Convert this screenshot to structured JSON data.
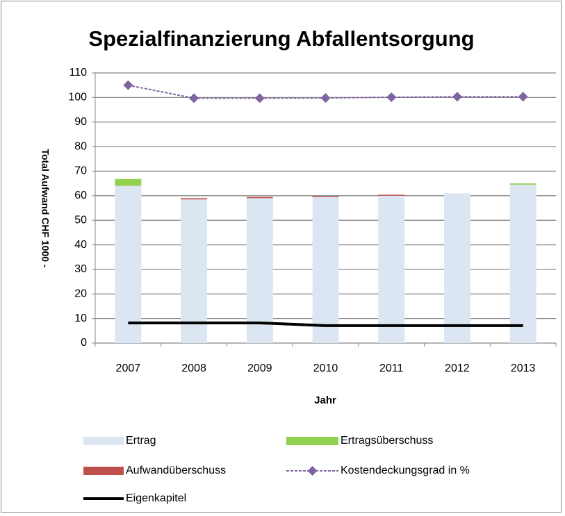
{
  "chart_data": {
    "type": "bar",
    "title": "Spezialfinanzierung Abfallentsorgung",
    "x_label": "Jahr",
    "y_label": "Total Aufwand CHF 1000 -",
    "categories": [
      "2007",
      "2008",
      "2009",
      "2010",
      "2011",
      "2012",
      "2013"
    ],
    "stacked": true,
    "series": [
      {
        "name": "Ertrag",
        "type": "bar",
        "color": "#dce6f2",
        "values": [
          64,
          58.5,
          59,
          59.5,
          60,
          61,
          64.5
        ]
      },
      {
        "name": "Ertragsüberschuss",
        "type": "bar",
        "color": "#92d050",
        "values": [
          2.8,
          0,
          0,
          0,
          0,
          0,
          0.5
        ]
      },
      {
        "name": "Aufwandüberschuss",
        "type": "bar",
        "color": "#c0504d",
        "values": [
          0,
          0.5,
          0.5,
          0.4,
          0.4,
          0,
          0
        ]
      },
      {
        "name": "Kostendeckungsgrad in %",
        "type": "line",
        "color": "#8064a2",
        "dashed": true,
        "marker": "diamond",
        "values": [
          105,
          99.7,
          99.7,
          99.8,
          100.1,
          100.3,
          100.3
        ]
      },
      {
        "name": "Eigenkapitel",
        "type": "line",
        "color": "#000000",
        "dashed": false,
        "marker": "none",
        "values": [
          8.2,
          8.2,
          8.2,
          7.1,
          7.1,
          7.1,
          7.1
        ]
      }
    ],
    "ylim": [
      0,
      110
    ],
    "yticks": [
      0,
      10,
      20,
      30,
      40,
      50,
      60,
      70,
      80,
      90,
      100,
      110
    ],
    "grid": true,
    "legend": "bottom"
  }
}
